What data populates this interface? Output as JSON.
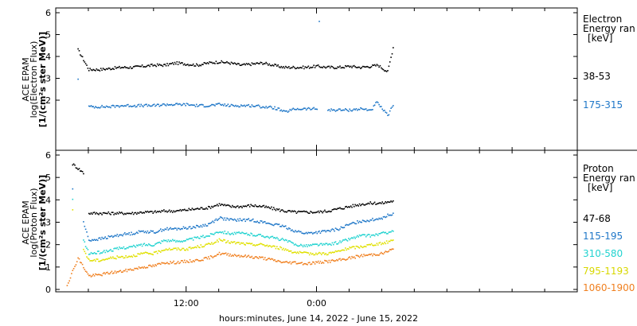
{
  "chart_data": {
    "type": "scatter",
    "xlabel": "hours:minutes, June 14, 2022 - June 15, 2022",
    "x_axis": {
      "range_hours": [
        0,
        48
      ],
      "major_ticks": [
        {
          "hour": 12,
          "label": "12:00"
        },
        {
          "hour": 24,
          "label": "0:00"
        }
      ],
      "minor_tick_every_hours": 3
    },
    "panels": [
      {
        "name": "electron",
        "ylabel": [
          "ACE EPAM",
          "log(Electron Flux)",
          "[1/(cm²s ster MeV)]"
        ],
        "ylim": [
          0,
          6.2
        ],
        "yticks": [
          2,
          3,
          4,
          5,
          6
        ],
        "legend": {
          "title": [
            "Electron",
            "Energy ran",
            "[keV]"
          ]
        },
        "series": [
          {
            "name": "38-53",
            "color": "#000000",
            "x": [
              2.0,
              3,
              4,
              5,
              6,
              7,
              8,
              9,
              10,
              11,
              12,
              13,
              14,
              15,
              16,
              17,
              18,
              19,
              20,
              20.4,
              21,
              22,
              23,
              24,
              25,
              26,
              27,
              28,
              29,
              29.6,
              30.5,
              31.0
            ],
            "y": [
              4.3,
              3.4,
              3.4,
              3.45,
              3.5,
              3.5,
              3.55,
              3.6,
              3.6,
              3.7,
              3.65,
              3.6,
              3.7,
              3.75,
              3.7,
              3.6,
              3.65,
              3.7,
              3.6,
              3.55,
              3.5,
              3.5,
              3.5,
              3.55,
              3.5,
              3.5,
              3.55,
              3.5,
              3.55,
              3.6,
              3.3,
              4.4
            ]
          },
          {
            "name": "175-315",
            "color": "#1f77c8",
            "x": [
              2.0,
              3,
              4,
              5,
              6,
              7,
              8,
              9,
              10,
              11,
              12,
              13,
              14,
              15,
              16,
              17,
              18,
              19,
              20,
              20.4,
              21,
              22,
              23,
              24,
              24.2,
              25,
              26,
              27,
              28,
              29,
              29.5,
              30.5,
              31.0
            ],
            "y": [
              3.0,
              1.7,
              1.7,
              1.7,
              1.75,
              1.75,
              1.75,
              1.75,
              1.8,
              1.8,
              1.8,
              1.75,
              1.75,
              1.8,
              1.75,
              1.75,
              1.75,
              1.7,
              1.65,
              1.6,
              1.45,
              1.6,
              1.6,
              1.6,
              5.6,
              1.55,
              1.55,
              1.55,
              1.6,
              1.55,
              1.9,
              1.3,
              1.75
            ]
          }
        ]
      },
      {
        "name": "proton",
        "ylabel": [
          "ACE EPAM",
          "log(Proton Flux)",
          "[1/(cm²s ster MeV)]"
        ],
        "ylim": [
          -0.2,
          6.2
        ],
        "yticks": [
          0,
          1,
          2,
          3,
          4,
          5,
          6
        ],
        "legend": {
          "title": [
            "Proton",
            "Energy ran",
            "[keV]"
          ]
        },
        "series": [
          {
            "name": "47-68",
            "color": "#000000",
            "x": [
              1.5,
              2.5,
              3,
              4,
              5,
              6,
              7,
              8,
              9,
              10,
              11,
              12,
              13,
              14,
              15,
              16,
              17,
              18,
              19,
              20,
              21,
              22,
              23,
              24,
              25,
              26,
              27,
              28,
              29,
              30,
              31
            ],
            "y": [
              5.6,
              5.2,
              3.4,
              3.4,
              3.4,
              3.4,
              3.4,
              3.45,
              3.45,
              3.5,
              3.5,
              3.55,
              3.6,
              3.65,
              3.8,
              3.7,
              3.7,
              3.75,
              3.7,
              3.6,
              3.5,
              3.45,
              3.45,
              3.45,
              3.5,
              3.6,
              3.7,
              3.8,
              3.85,
              3.85,
              3.95
            ]
          },
          {
            "name": "115-195",
            "color": "#1f77c8",
            "x": [
              1.5,
              2.5,
              3,
              4,
              5,
              6,
              7,
              8,
              9,
              10,
              11,
              12,
              13,
              14,
              15,
              16,
              17,
              18,
              19,
              20,
              21,
              22,
              23,
              24,
              25,
              26,
              27,
              28,
              29,
              30,
              31
            ],
            "y": [
              4.5,
              3.0,
              2.2,
              2.25,
              2.35,
              2.45,
              2.5,
              2.6,
              2.55,
              2.7,
              2.7,
              2.75,
              2.8,
              2.9,
              3.2,
              3.1,
              3.1,
              3.1,
              3.0,
              2.9,
              2.8,
              2.6,
              2.5,
              2.55,
              2.6,
              2.7,
              2.9,
              3.05,
              3.1,
              3.2,
              3.4
            ]
          },
          {
            "name": "310-580",
            "color": "#22d3d0",
            "x": [
              1.5,
              2.5,
              3,
              4,
              5,
              6,
              7,
              8,
              9,
              10,
              11,
              12,
              13,
              14,
              15,
              16,
              17,
              18,
              19,
              20,
              21,
              22,
              23,
              24,
              25,
              26,
              27,
              28,
              29,
              30,
              31
            ],
            "y": [
              4.0,
              2.2,
              1.6,
              1.65,
              1.75,
              1.85,
              1.9,
              2.0,
              2.0,
              2.2,
              2.15,
              2.2,
              2.3,
              2.4,
              2.6,
              2.5,
              2.5,
              2.45,
              2.4,
              2.3,
              2.2,
              2.0,
              1.95,
              2.0,
              2.0,
              2.1,
              2.25,
              2.4,
              2.4,
              2.5,
              2.6
            ]
          },
          {
            "name": "795-1193",
            "color": "#e0e000",
            "x": [
              1.5,
              2.5,
              3,
              4,
              5,
              6,
              7,
              8,
              9,
              10,
              11,
              12,
              13,
              14,
              15,
              16,
              17,
              18,
              19,
              20,
              21,
              22,
              23,
              24,
              25,
              26,
              27,
              28,
              29,
              30,
              31
            ],
            "y": [
              3.5,
              1.8,
              1.3,
              1.3,
              1.4,
              1.45,
              1.5,
              1.6,
              1.6,
              1.8,
              1.8,
              1.8,
              1.9,
              2.0,
              2.2,
              2.1,
              2.05,
              2.0,
              2.0,
              1.9,
              1.8,
              1.65,
              1.6,
              1.6,
              1.6,
              1.7,
              1.85,
              1.9,
              2.0,
              2.05,
              2.2
            ]
          },
          {
            "name": "1060-1900",
            "color": "#f08020",
            "x": [
              1.0,
              2.0,
              3,
              4,
              5,
              6,
              7,
              8,
              9,
              10,
              11,
              12,
              13,
              14,
              15,
              16,
              17,
              18,
              19,
              20,
              21,
              22,
              23,
              24,
              25,
              26,
              27,
              28,
              29,
              30,
              31
            ],
            "y": [
              0.2,
              1.4,
              0.6,
              0.65,
              0.75,
              0.8,
              0.9,
              1.0,
              1.05,
              1.2,
              1.2,
              1.25,
              1.3,
              1.4,
              1.6,
              1.55,
              1.5,
              1.45,
              1.4,
              1.3,
              1.2,
              1.2,
              1.15,
              1.2,
              1.25,
              1.3,
              1.4,
              1.5,
              1.55,
              1.6,
              1.8
            ]
          }
        ]
      }
    ]
  }
}
